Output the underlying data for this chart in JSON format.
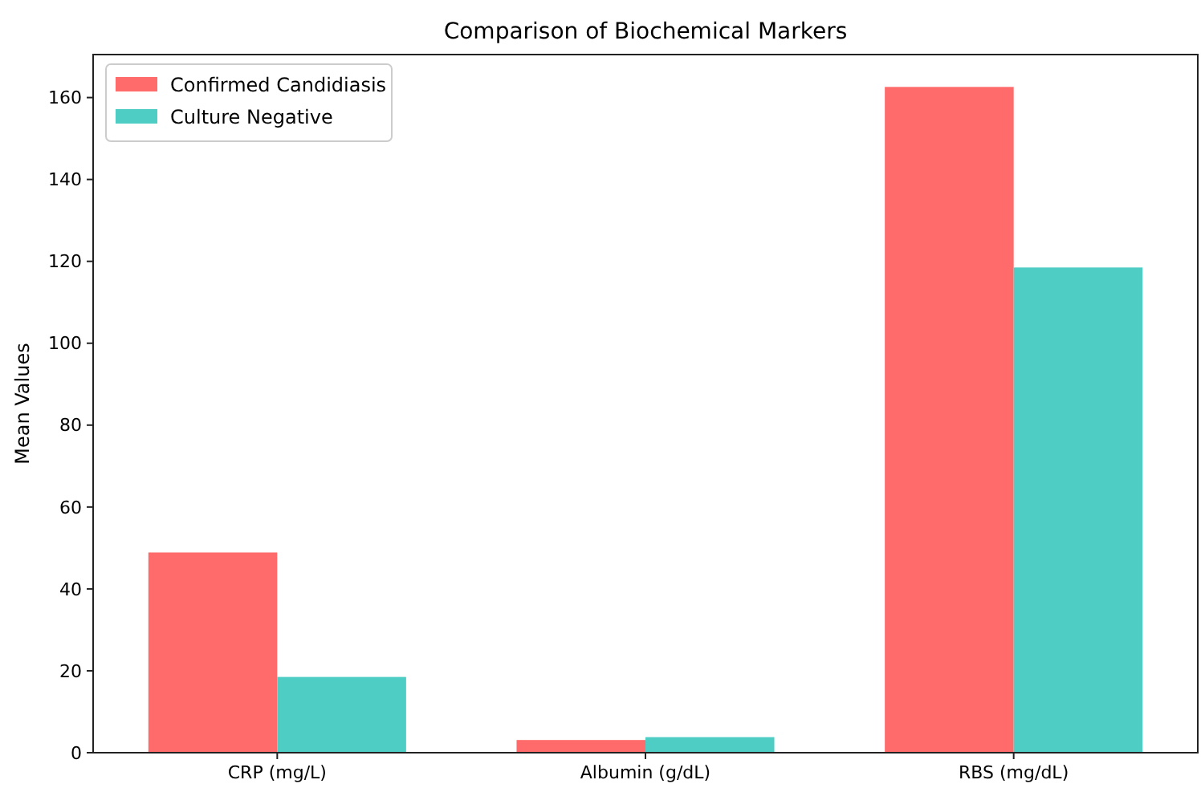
{
  "chart_data": {
    "type": "bar",
    "title": "Comparison of Biochemical Markers",
    "ylabel": "Mean Values",
    "categories": [
      "CRP (mg/L)",
      "Albumin (g/dL)",
      "RBS (mg/dL)"
    ],
    "series": [
      {
        "name": "Confirmed Candidiasis",
        "color": "#ff6b6b",
        "values": [
          48.9,
          3.1,
          162.6
        ]
      },
      {
        "name": "Culture Negative",
        "color": "#4ecdc4",
        "values": [
          18.5,
          3.8,
          118.5
        ]
      }
    ],
    "ylim": [
      0,
      170.5
    ],
    "yticks": [
      0,
      20,
      40,
      60,
      80,
      100,
      120,
      140,
      160
    ],
    "legend": "top left"
  }
}
